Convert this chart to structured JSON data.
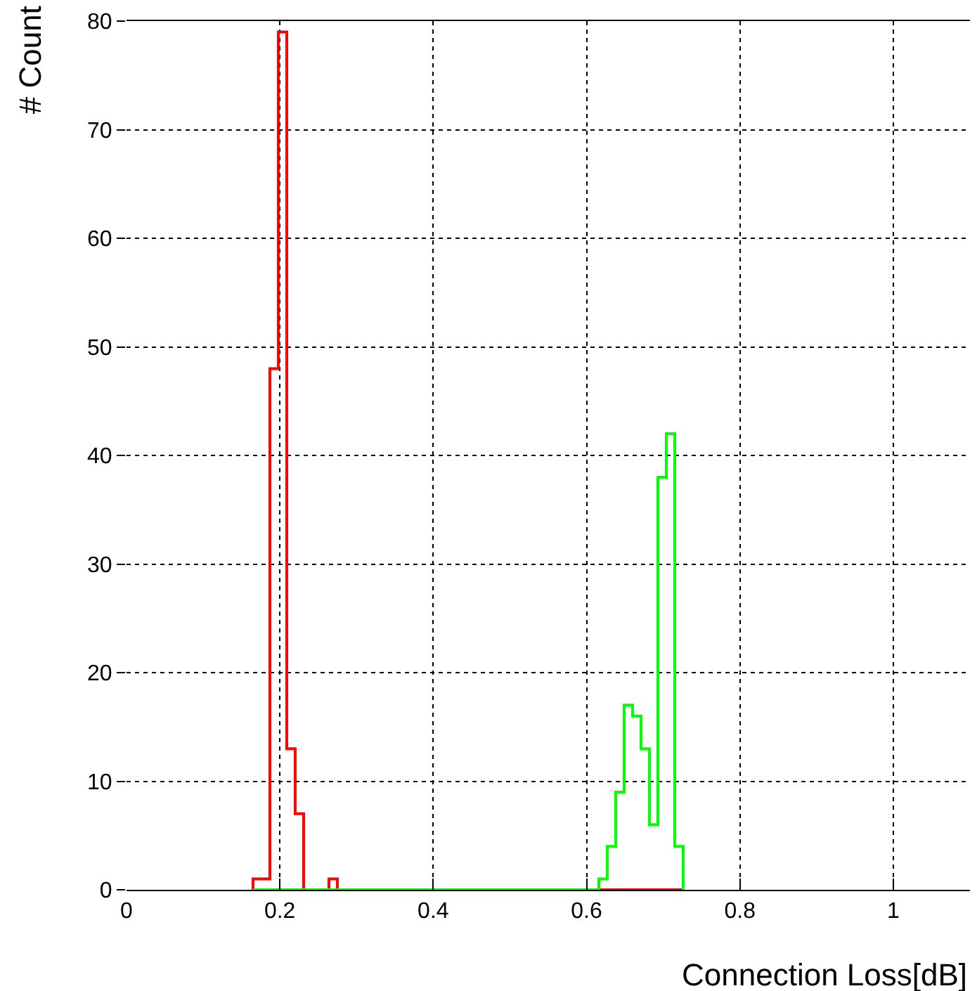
{
  "chart_data": {
    "type": "histogram",
    "xlabel": "Connection Loss[dB]",
    "ylabel": "# Count",
    "bins": [
      0.165,
      0.176,
      0.187,
      0.198,
      0.209,
      0.22,
      0.231,
      0.242,
      0.253,
      0.264,
      0.275,
      0.286,
      0.297,
      0.308,
      0.319,
      0.33,
      0.341,
      0.352,
      0.363,
      0.374,
      0.385,
      0.396,
      0.407,
      0.418,
      0.429,
      0.44,
      0.451,
      0.462,
      0.473,
      0.484,
      0.495,
      0.506,
      0.517,
      0.528,
      0.539,
      0.55,
      0.561,
      0.572,
      0.583,
      0.594,
      0.605,
      0.616,
      0.627,
      0.638,
      0.649,
      0.66,
      0.671,
      0.682,
      0.693,
      0.704,
      0.715,
      0.726
    ],
    "series": [
      {
        "color": "#ff0000",
        "values": [
          1,
          1,
          48,
          79,
          13,
          7,
          0,
          0,
          0,
          1,
          0,
          0,
          0,
          0,
          0,
          0,
          0,
          0,
          0,
          0,
          0,
          0,
          0,
          0,
          0,
          0,
          0,
          0,
          0,
          0,
          0,
          0,
          0,
          0,
          0,
          0,
          0,
          0,
          0,
          0,
          0,
          0,
          0,
          0,
          0,
          0,
          0,
          0,
          0,
          0,
          0
        ]
      },
      {
        "color": "#00ff00",
        "values": [
          0,
          0,
          0,
          0,
          0,
          0,
          0,
          0,
          0,
          0,
          0,
          0,
          0,
          0,
          0,
          0,
          0,
          0,
          0,
          0,
          0,
          0,
          0,
          0,
          0,
          0,
          0,
          0,
          0,
          0,
          0,
          0,
          0,
          0,
          0,
          0,
          0,
          0,
          0,
          0,
          0,
          1,
          4,
          9,
          17,
          16,
          13,
          6,
          38,
          42,
          4
        ]
      }
    ],
    "xlim": [
      0,
      1.1
    ],
    "ylim": [
      0,
      80
    ],
    "xticks": [
      0,
      0.2,
      0.4,
      0.6,
      0.8,
      1
    ],
    "yticks": [
      0,
      10,
      20,
      30,
      40,
      50,
      60,
      70,
      80
    ],
    "grid": true
  }
}
